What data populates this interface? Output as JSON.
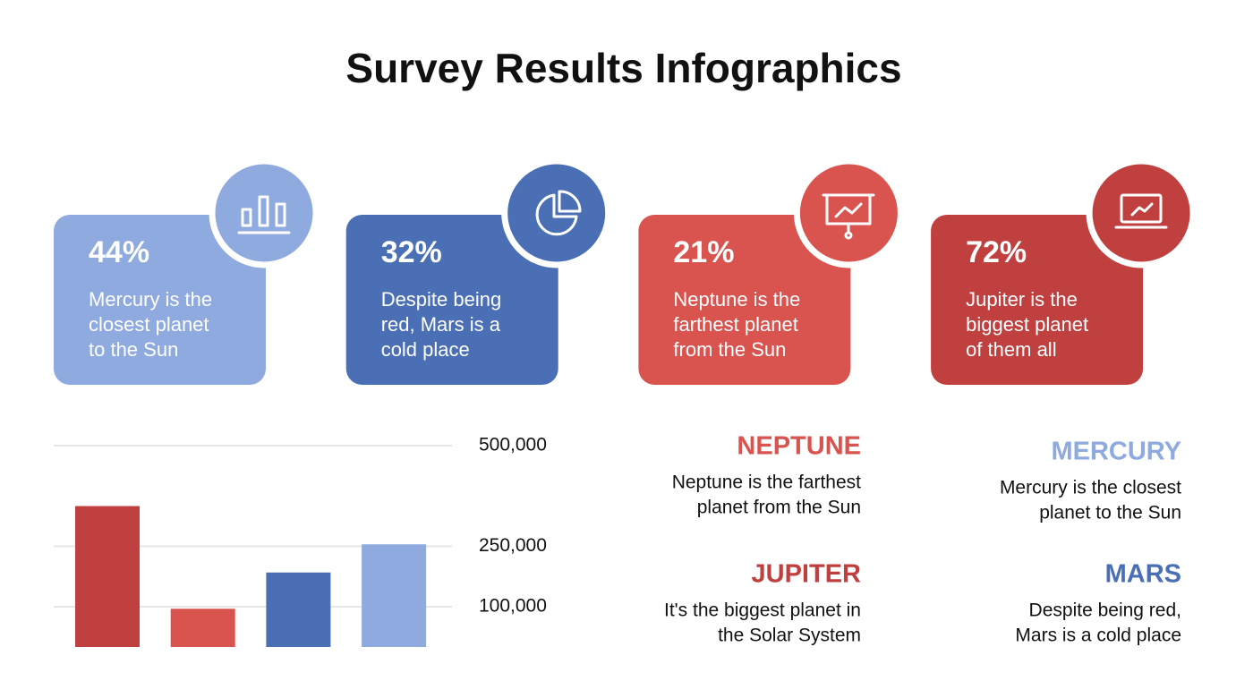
{
  "header": {
    "title": "Survey Results Infographics"
  },
  "cards": [
    {
      "percent": "44%",
      "lines": [
        "Mercury is the",
        "closest planet",
        "to the Sun"
      ],
      "color": "#8eaadf"
    },
    {
      "percent": "32%",
      "lines": [
        "Despite being",
        "red, Mars is a",
        "cold place"
      ],
      "color": "#4a6fb5"
    },
    {
      "percent": "21%",
      "lines": [
        "Neptune is the",
        "farthest planet",
        "from the Sun"
      ],
      "color": "#d9534f"
    },
    {
      "percent": "72%",
      "lines": [
        "Jupiter is the",
        "biggest planet",
        "of them all"
      ],
      "color": "#c0403f"
    }
  ],
  "notes": [
    {
      "title": "NEPTUNE",
      "lines": [
        "Neptune is the farthest",
        "planet from the Sun"
      ],
      "color": "#d9534f"
    },
    {
      "title": "MERCURY",
      "lines": [
        "Mercury is the closest",
        "planet to the Sun"
      ],
      "color": "#8eaadf"
    },
    {
      "title": "JUPITER",
      "lines": [
        "It's the biggest planet in",
        "the Solar System"
      ],
      "color": "#c0403f"
    },
    {
      "title": "MARS",
      "lines": [
        "Despite being red,",
        "Mars is a cold place"
      ],
      "color": "#4a6fb5"
    }
  ],
  "chart_data": {
    "type": "bar",
    "categories": [
      null,
      null,
      null,
      null
    ],
    "values": [
      350000,
      95000,
      185000,
      255000
    ],
    "colors": [
      "#c0403f",
      "#d9534f",
      "#4a6fb5",
      "#8eaadf"
    ],
    "ylim": [
      0,
      500000
    ],
    "yticks": [
      {
        "value": 100000,
        "label": "100,000"
      },
      {
        "value": 250000,
        "label": "250,000"
      },
      {
        "value": 500000,
        "label": "500,000"
      }
    ],
    "grid": true
  }
}
